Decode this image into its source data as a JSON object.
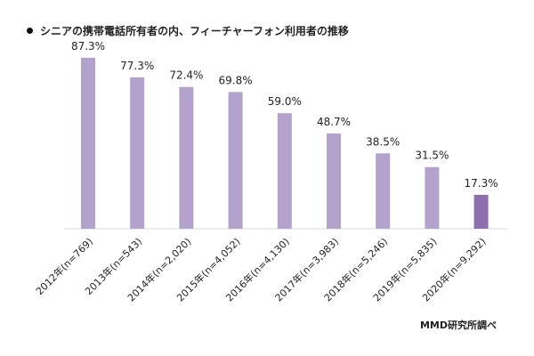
{
  "title": "シニアの携帯電話所有者の内、フィーチャーフォン利用者の推移",
  "source": "MMD研究所調べ",
  "chart_data": {
    "type": "bar",
    "categories": [
      "2012年(n=769)",
      "2013年(n=543)",
      "2014年(n=2,020)",
      "2015年(n=4,052)",
      "2016年(n=4,130)",
      "2017年(n=3,983)",
      "2018年(n=5,246)",
      "2019年(n=5,835)",
      "2020年(n=9,292)"
    ],
    "values": [
      87.3,
      77.3,
      72.4,
      69.8,
      59.0,
      48.7,
      38.5,
      31.5,
      17.3
    ],
    "data_labels": [
      "87.3%",
      "77.3%",
      "72.4%",
      "69.8%",
      "59.0%",
      "48.7%",
      "38.5%",
      "31.5%",
      "17.3%"
    ],
    "title": "シニアの携帯電話所有者の内、フィーチャーフォン利用者の推移",
    "xlabel": "",
    "ylabel": "",
    "ylim": [
      0,
      100
    ],
    "grid": false,
    "legend": "none",
    "colors": {
      "bar": "#b3a2cb",
      "highlight": "#8e6fae",
      "axis": "#d9d9d9",
      "text": "#222222"
    },
    "highlight_index": 8
  }
}
